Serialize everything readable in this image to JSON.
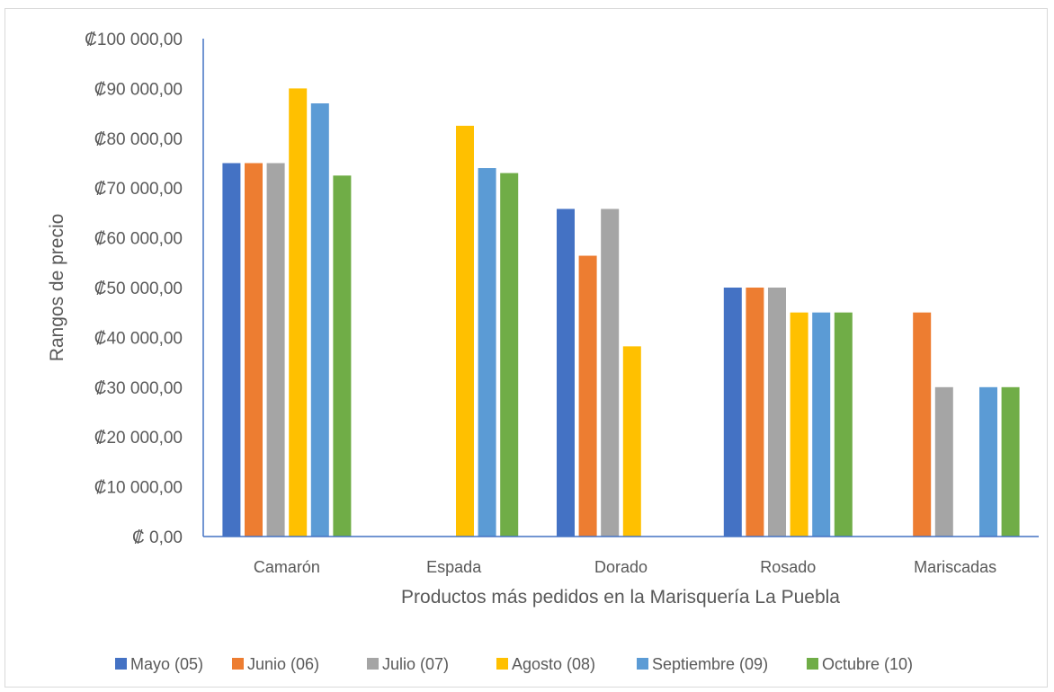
{
  "chart_data": {
    "type": "bar",
    "title": "",
    "xlabel": "Productos más pedidos en la Marisquería La Puebla",
    "ylabel": "Rangos de precio",
    "categories": [
      "Camarón",
      "Espada",
      "Dorado",
      "Rosado",
      "Mariscadas"
    ],
    "ylim": [
      0,
      100000
    ],
    "ytick_step": 10000,
    "ytick_labels": [
      "₡ 0,00",
      "₡10 000,00",
      "₡20 000,00",
      "₡30 000,00",
      "₡40 000,00",
      "₡50 000,00",
      "₡60 000,00",
      "₡70 000,00",
      "₡80 000,00",
      "₡90 000,00",
      "₡100 000,00"
    ],
    "grid": false,
    "legend_position": "bottom",
    "series": [
      {
        "name": "Mayo (05)",
        "color": "#4472c4",
        "values": [
          75000,
          null,
          65800,
          50000,
          null
        ]
      },
      {
        "name": "Junio (06)",
        "color": "#ed7d31",
        "values": [
          75000,
          null,
          56400,
          50000,
          45000
        ]
      },
      {
        "name": "Julio (07)",
        "color": "#a5a5a5",
        "values": [
          75000,
          null,
          65800,
          50000,
          30000
        ]
      },
      {
        "name": "Agosto (08)",
        "color": "#ffc000",
        "values": [
          90000,
          82500,
          38200,
          45000,
          null
        ]
      },
      {
        "name": "Septiembre (09)",
        "color": "#5b9bd5",
        "values": [
          87000,
          74000,
          null,
          45000,
          30000
        ]
      },
      {
        "name": "Octubre (10)",
        "color": "#70ad47",
        "values": [
          72500,
          73000,
          null,
          45000,
          30000
        ]
      }
    ]
  }
}
